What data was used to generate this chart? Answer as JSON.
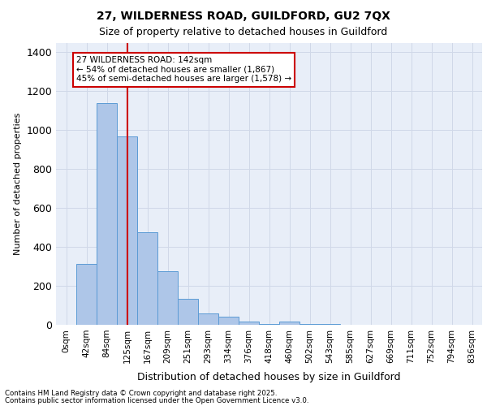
{
  "title_line1": "27, WILDERNESS ROAD, GUILDFORD, GU2 7QX",
  "title_line2": "Size of property relative to detached houses in Guildford",
  "xlabel": "Distribution of detached houses by size in Guildford",
  "ylabel": "Number of detached properties",
  "bin_labels": [
    "0sqm",
    "42sqm",
    "84sqm",
    "125sqm",
    "167sqm",
    "209sqm",
    "251sqm",
    "293sqm",
    "334sqm",
    "376sqm",
    "418sqm",
    "460sqm",
    "502sqm",
    "543sqm",
    "585sqm",
    "627sqm",
    "669sqm",
    "711sqm",
    "752sqm",
    "794sqm",
    "836sqm"
  ],
  "bar_values": [
    0,
    315,
    1140,
    970,
    475,
    275,
    135,
    60,
    40,
    15,
    5,
    15,
    5,
    5,
    0,
    0,
    0,
    0,
    0,
    0,
    0
  ],
  "bar_color": "#aec6e8",
  "bar_edge_color": "#5b9bd5",
  "property_bin_index": 3,
  "vline_color": "#cc0000",
  "annotation_text": "27 WILDERNESS ROAD: 142sqm\n← 54% of detached houses are smaller (1,867)\n45% of semi-detached houses are larger (1,578) →",
  "annotation_box_color": "#ffffff",
  "annotation_box_edge": "#cc0000",
  "ylim": [
    0,
    1450
  ],
  "yticks": [
    0,
    200,
    400,
    600,
    800,
    1000,
    1200,
    1400
  ],
  "grid_color": "#d0d8e8",
  "background_color": "#e8eef8",
  "footer_line1": "Contains HM Land Registry data © Crown copyright and database right 2025.",
  "footer_line2": "Contains public sector information licensed under the Open Government Licence v3.0."
}
